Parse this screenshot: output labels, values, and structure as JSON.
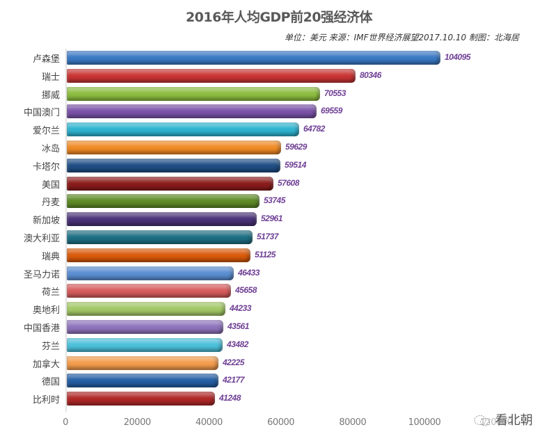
{
  "chart_data": {
    "type": "bar",
    "orientation": "horizontal",
    "title": "2016年人均GDP前20强经济体",
    "subtitle": "单位：美元 来源：IMF世界经济展望2017.10.10 制图：北海居",
    "xlabel": "",
    "ylabel": "",
    "xlim": [
      0,
      120000
    ],
    "x_ticks": [
      "0",
      "20000",
      "40000",
      "60000",
      "80000",
      "100000",
      "120000"
    ],
    "grid": false,
    "legend": "none",
    "categories": [
      "卢森堡",
      "瑞士",
      "挪威",
      "中国澳门",
      "爱尔兰",
      "冰岛",
      "卡塔尔",
      "美国",
      "丹麦",
      "新加坡",
      "澳大利亚",
      "瑞典",
      "圣马力诺",
      "荷兰",
      "奥地利",
      "中国香港",
      "芬兰",
      "加拿大",
      "德国",
      "比利时"
    ],
    "values": [
      104095,
      80346,
      70553,
      69559,
      64782,
      59629,
      59514,
      57608,
      53745,
      52961,
      51737,
      51125,
      46433,
      45658,
      44233,
      43561,
      43482,
      42225,
      42177,
      41248
    ],
    "colors": [
      "#3a78c4",
      "#c93434",
      "#8cbd3f",
      "#7a52a8",
      "#2eb3cf",
      "#f08a24",
      "#1f4e85",
      "#8b1c1c",
      "#5d8a25",
      "#4a3278",
      "#1d6f84",
      "#d95a0b",
      "#5a8ed2",
      "#d65c5c",
      "#a3c866",
      "#8f73bd",
      "#4cc0da",
      "#f39c4c",
      "#245ea3",
      "#b02828"
    ],
    "value_label_color": "#6f3f95"
  },
  "watermark": "看北朝"
}
